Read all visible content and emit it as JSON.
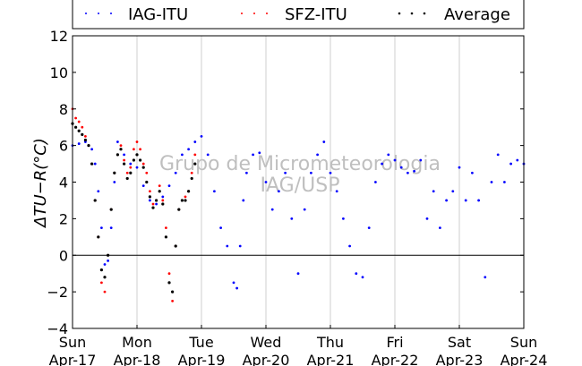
{
  "chart_data": {
    "type": "scatter",
    "ylabel": "ΔT_{U−R}(°C)",
    "ylabel_display": "ΔTU−R(°C)",
    "ylim": [
      -4,
      12
    ],
    "yticks": [
      -4,
      -2,
      0,
      2,
      4,
      6,
      8,
      10,
      12
    ],
    "xlim": [
      0,
      7
    ],
    "xticks": [
      {
        "day": "Sun",
        "date": "Apr-17"
      },
      {
        "day": "Mon",
        "date": "Apr-18"
      },
      {
        "day": "Tue",
        "date": "Apr-19"
      },
      {
        "day": "Wed",
        "date": "Apr-20"
      },
      {
        "day": "Thu",
        "date": "Apr-21"
      },
      {
        "day": "Fri",
        "date": "Apr-22"
      },
      {
        "day": "Sat",
        "date": "Apr-23"
      },
      {
        "day": "Sun",
        "date": "Apr-24"
      }
    ],
    "grid": "vertical",
    "zero_line": true,
    "legend_position": "top",
    "watermark": [
      "Grupo de Micrometeorologia",
      "IAG/USP"
    ],
    "series": [
      {
        "name": "IAG-ITU",
        "color": "#0000ff",
        "x": [
          0,
          0.1,
          0.2,
          0.3,
          0.35,
          0.4,
          0.45,
          0.5,
          0.55,
          0.6,
          0.65,
          0.7,
          0.8,
          0.9,
          1.0,
          1.1,
          1.2,
          1.3,
          1.4,
          1.5,
          1.6,
          1.7,
          1.8,
          1.9,
          2.0,
          2.1,
          2.2,
          2.3,
          2.4,
          2.5,
          2.55,
          2.6,
          2.65,
          2.7,
          2.8,
          2.9,
          3.0,
          3.1,
          3.2,
          3.3,
          3.4,
          3.5,
          3.6,
          3.7,
          3.8,
          3.9,
          4.0,
          4.1,
          4.2,
          4.3,
          4.4,
          4.5,
          4.6,
          4.7,
          4.8,
          4.9,
          5.0,
          5.1,
          5.2,
          5.3,
          5.4,
          5.5,
          5.6,
          5.7,
          5.8,
          5.9,
          6.0,
          6.1,
          6.2,
          6.3,
          6.4,
          6.5,
          6.6,
          6.7,
          6.8,
          6.9,
          7.0
        ],
        "y": [
          6.0,
          6.1,
          6.2,
          5.8,
          5.0,
          3.5,
          1.5,
          -0.5,
          -0.3,
          1.5,
          4.0,
          6.2,
          5.5,
          5.0,
          4.8,
          3.8,
          3.0,
          2.8,
          3.2,
          3.8,
          4.5,
          5.5,
          5.8,
          6.2,
          6.5,
          5.5,
          3.5,
          1.5,
          0.5,
          -1.5,
          -1.8,
          0.5,
          3.0,
          4.5,
          5.5,
          5.6,
          4.0,
          2.5,
          3.5,
          4.5,
          2.0,
          -1.0,
          2.5,
          4.5,
          5.5,
          6.2,
          4.5,
          3.5,
          2.0,
          0.5,
          -1.0,
          -1.2,
          1.5,
          4.0,
          5.0,
          5.5,
          5.2,
          4.8,
          4.5,
          4.6,
          5.2,
          2.0,
          3.5,
          1.5,
          3.0,
          3.5,
          4.8,
          3.0,
          4.5,
          3.0,
          -1.2,
          4.0,
          5.5,
          4.0,
          5.0,
          5.2,
          5.0
        ]
      },
      {
        "name": "SFZ-ITU",
        "color": "#ff0000",
        "x": [
          0,
          0.05,
          0.1,
          0.15,
          0.2,
          0.25,
          0.3,
          0.35,
          0.4,
          0.45,
          0.5,
          0.55,
          0.6,
          0.65,
          0.7,
          0.75,
          0.8,
          0.85,
          0.9,
          0.95,
          1.0,
          1.05,
          1.1,
          1.15,
          1.2,
          1.25,
          1.3,
          1.35,
          1.4,
          1.45,
          1.5,
          1.55,
          1.6,
          1.65,
          1.7,
          1.75,
          1.8,
          1.85,
          1.9
        ],
        "y": [
          8.0,
          7.5,
          7.3,
          7.0,
          6.5,
          6.0,
          5.0,
          3.0,
          1.0,
          -1.5,
          -2.0,
          0.0,
          2.5,
          4.5,
          5.5,
          6.0,
          5.2,
          4.5,
          4.8,
          5.8,
          6.2,
          5.8,
          5.0,
          4.5,
          3.5,
          2.8,
          3.0,
          3.8,
          3.0,
          1.5,
          -1.0,
          -2.5,
          0.5,
          2.5,
          3.0,
          3.2,
          3.5,
          4.5,
          5.5
        ]
      },
      {
        "name": "Average",
        "color": "#000000",
        "x": [
          0,
          0.05,
          0.1,
          0.15,
          0.2,
          0.25,
          0.3,
          0.35,
          0.4,
          0.45,
          0.5,
          0.55,
          0.6,
          0.65,
          0.7,
          0.75,
          0.8,
          0.85,
          0.9,
          0.95,
          1.0,
          1.05,
          1.1,
          1.15,
          1.2,
          1.25,
          1.3,
          1.35,
          1.4,
          1.45,
          1.5,
          1.55,
          1.6,
          1.65,
          1.7,
          1.75,
          1.8,
          1.85,
          1.9
        ],
        "y": [
          7.2,
          7.0,
          6.8,
          6.6,
          6.3,
          6.0,
          5.0,
          3.0,
          1.0,
          -0.8,
          -1.2,
          0.0,
          2.5,
          4.5,
          5.5,
          5.8,
          5.0,
          4.2,
          4.5,
          5.2,
          5.5,
          5.2,
          4.8,
          4.0,
          3.2,
          2.6,
          3.0,
          3.5,
          2.8,
          1.0,
          -1.5,
          -2.0,
          0.5,
          2.5,
          3.0,
          3.0,
          3.5,
          4.2,
          5.0
        ]
      }
    ]
  }
}
